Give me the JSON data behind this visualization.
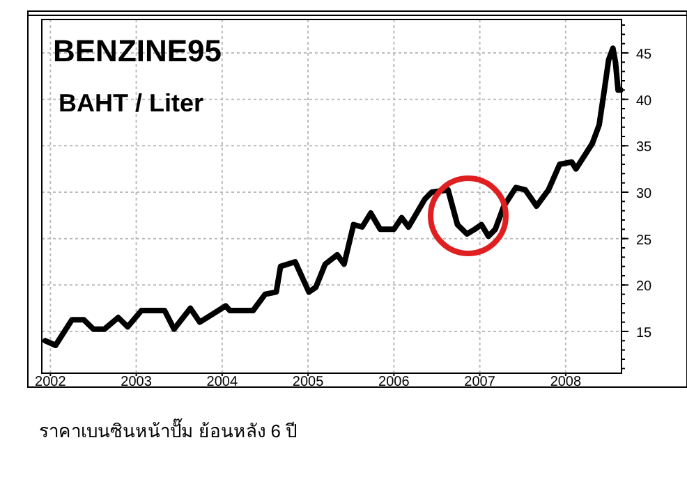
{
  "chart_data": {
    "type": "line",
    "title": "BENZINE95",
    "subtitle": "BAHT / Liter",
    "annotations": [
      "ราคาเบนซินหน้าปั๊ม ย้อนหลัง 6 ปี"
    ],
    "x": [
      2001.94,
      2002.06,
      2002.25,
      2002.39,
      2002.5,
      2002.63,
      2002.79,
      2002.9,
      2003.06,
      2003.33,
      2003.44,
      2003.63,
      2003.74,
      2003.87,
      2004.04,
      2004.09,
      2004.36,
      2004.5,
      2004.63,
      2004.68,
      2004.85,
      2005.01,
      2005.09,
      2005.2,
      2005.34,
      2005.42,
      2005.53,
      2005.63,
      2005.73,
      2005.84,
      2006.0,
      2006.09,
      2006.17,
      2006.36,
      2006.44,
      2006.63,
      2006.74,
      2006.85,
      2006.94,
      2007.02,
      2007.1,
      2007.18,
      2007.28,
      2007.42,
      2007.53,
      2007.66,
      2007.8,
      2007.93,
      2008.07,
      2008.12,
      2008.31,
      2008.39,
      2008.45,
      2008.5,
      2008.55,
      2008.58,
      2008.61,
      2008.64
    ],
    "series": [
      {
        "color": "#000000",
        "values": [
          14.0,
          13.5,
          16.25,
          16.25,
          15.25,
          15.25,
          16.5,
          15.5,
          17.25,
          17.25,
          15.25,
          17.5,
          16.0,
          16.75,
          17.75,
          17.25,
          17.25,
          19.0,
          19.25,
          22.0,
          22.5,
          19.25,
          19.75,
          22.25,
          23.25,
          22.25,
          26.5,
          26.25,
          27.75,
          26.0,
          26.0,
          27.25,
          26.25,
          29.25,
          30.0,
          30.25,
          26.5,
          25.5,
          26.0,
          26.5,
          25.25,
          26.0,
          28.5,
          30.5,
          30.25,
          28.5,
          30.25,
          33.0,
          33.25,
          32.5,
          35.25,
          37.25,
          41.0,
          44.25,
          45.5,
          44.0,
          41.0,
          41.0
        ]
      }
    ],
    "xlim": [
      2001.9,
      2008.65
    ],
    "ylim": [
      10.5,
      48.6
    ],
    "xticks": [
      {
        "value": 2002,
        "label": "2002"
      },
      {
        "value": 2003,
        "label": "2003"
      },
      {
        "value": 2004,
        "label": "2004"
      },
      {
        "value": 2005,
        "label": "2005"
      },
      {
        "value": 2006,
        "label": "2006"
      },
      {
        "value": 2007,
        "label": "2007"
      },
      {
        "value": 2008,
        "label": "2008"
      }
    ],
    "yticks": [
      15,
      20,
      25,
      30,
      35,
      40,
      45
    ],
    "grid": true,
    "marker": "none",
    "line_style": "solid"
  }
}
